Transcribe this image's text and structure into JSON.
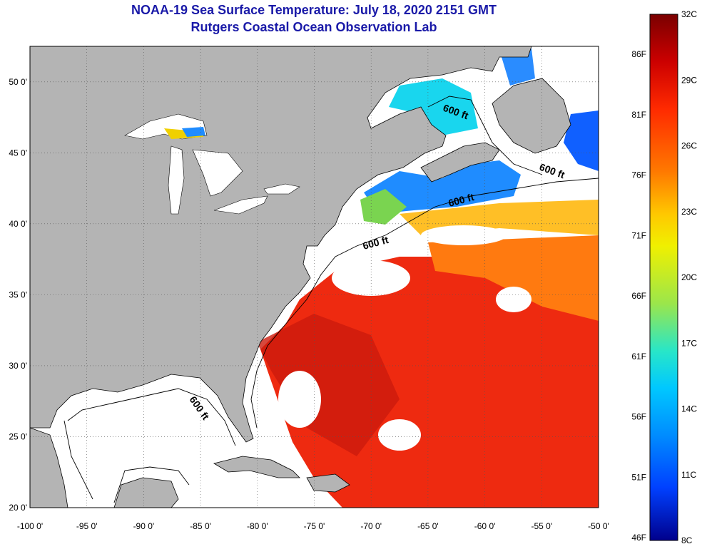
{
  "header": {
    "title": "NOAA-19 Sea Surface Temperature:  July 18, 2020 2151 GMT",
    "subtitle": "Rutgers Coastal Ocean Observation Lab"
  },
  "map": {
    "lon_range": [
      -100,
      -50
    ],
    "lat_range": [
      20,
      52.5
    ],
    "lon_ticks": [
      "-100 0'",
      "-95 0'",
      "-90 0'",
      "-85 0'",
      "-80 0'",
      "-75 0'",
      "-70 0'",
      "-65 0'",
      "-60 0'",
      "-55 0'",
      "-50 0'"
    ],
    "lat_ticks": [
      "20 0'",
      "25 0'",
      "30 0'",
      "35 0'",
      "40 0'",
      "45 0'",
      "50 0'"
    ],
    "contour_labels": [
      "600 ft",
      "600 ft",
      "600 ft",
      "600 ft",
      "600 ft"
    ],
    "colors": {
      "land": "#b4b4b4",
      "ocean": "#ffffff",
      "grid": "#555555"
    }
  },
  "colorbar": {
    "celsius_labels": [
      "32C",
      "29C",
      "26C",
      "23C",
      "20C",
      "17C",
      "14C",
      "11C",
      "8C"
    ],
    "fahrenheit_labels": [
      "86F",
      "81F",
      "76F",
      "71F",
      "66F",
      "61F",
      "56F",
      "51F",
      "46F"
    ],
    "stops": [
      "#7a0000",
      "#cc0000",
      "#ff2a00",
      "#ff7a00",
      "#ffc800",
      "#f0f000",
      "#9be64b",
      "#28e6c8",
      "#00c8ff",
      "#008cff",
      "#0040ff",
      "#00008c"
    ]
  }
}
